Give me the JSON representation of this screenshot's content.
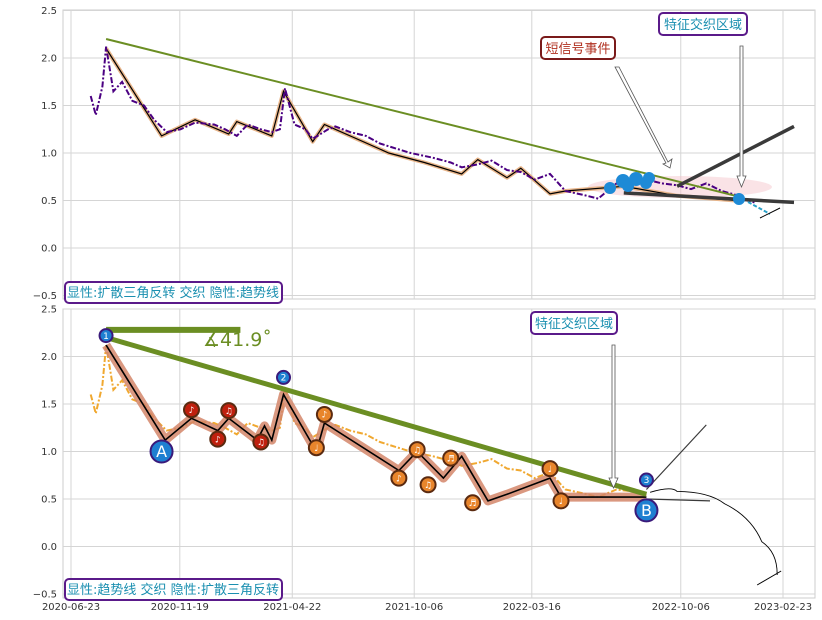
{
  "chart_data": [
    {
      "type": "line",
      "title": "",
      "xlabel": "",
      "ylabel": "",
      "ylim": [
        -0.5,
        2.5
      ],
      "yticks": [
        "−0.5",
        "0.0",
        "0.5",
        "1.0",
        "1.5",
        "2.0",
        "2.5"
      ],
      "grid": true,
      "series": [
        {
          "role": "price",
          "color": "#4b0082",
          "style": "dash-dot",
          "x": [
            "2020-07-20",
            "2020-07-27",
            "2020-08-05",
            "2020-08-10",
            "2020-08-20",
            "2020-09-01",
            "2020-09-15",
            "2020-10-01",
            "2020-10-15",
            "2020-11-01",
            "2020-11-20",
            "2020-12-10",
            "2021-01-05",
            "2021-01-20",
            "2021-02-05",
            "2021-02-20",
            "2021-03-10",
            "2021-03-25",
            "2021-04-05",
            "2021-04-12",
            "2021-04-25",
            "2021-05-10",
            "2021-05-20",
            "2021-06-10",
            "2021-06-20",
            "2021-07-10",
            "2021-08-01",
            "2021-08-20",
            "2021-09-10",
            "2021-10-01",
            "2021-11-01",
            "2021-11-25",
            "2021-12-10",
            "2022-01-01",
            "2022-01-20",
            "2022-02-10",
            "2022-03-01",
            "2022-03-20",
            "2022-04-10",
            "2022-05-01",
            "2022-05-25",
            "2022-06-15",
            "2022-07-10",
            "2022-08-01",
            "2022-08-20",
            "2022-09-10",
            "2022-10-01",
            "2022-10-20",
            "2022-11-10",
            "2022-12-01",
            "2022-12-20",
            "2023-01-05",
            "2023-01-15"
          ],
          "values": [
            1.6,
            1.4,
            1.7,
            2.12,
            1.65,
            1.75,
            1.55,
            1.5,
            1.35,
            1.22,
            1.25,
            1.32,
            1.3,
            1.25,
            1.18,
            1.3,
            1.25,
            1.22,
            1.25,
            1.68,
            1.3,
            1.25,
            1.15,
            1.25,
            1.28,
            1.22,
            1.18,
            1.1,
            1.05,
            1.0,
            0.95,
            0.9,
            0.85,
            0.88,
            0.92,
            0.82,
            0.8,
            0.72,
            0.78,
            0.6,
            0.56,
            0.52,
            0.68,
            0.7,
            0.72,
            0.68,
            0.66,
            0.62,
            0.68,
            0.6,
            0.56,
            0.5,
            0.48
          ]
        },
        {
          "role": "pattern-zigzag",
          "color": "#000000",
          "x": [
            "2020-08-10",
            "2020-10-25",
            "2020-12-10",
            "2021-01-25",
            "2021-02-05",
            "2021-03-25",
            "2021-04-10",
            "2021-05-20",
            "2021-06-05",
            "2021-09-01",
            "2021-10-20",
            "2021-12-10",
            "2022-01-01",
            "2022-02-10",
            "2022-03-01",
            "2022-04-10",
            "2022-05-01",
            "2022-07-20",
            "2022-10-01",
            "2022-12-20"
          ],
          "values": [
            2.1,
            1.18,
            1.35,
            1.2,
            1.33,
            1.18,
            1.65,
            1.12,
            1.3,
            1.0,
            0.9,
            0.78,
            0.93,
            0.74,
            0.84,
            0.57,
            0.6,
            0.65,
            0.55,
            0.5
          ]
        },
        {
          "role": "trendline",
          "color": "#6b8e23",
          "x": [
            "2020-08-10",
            "2022-12-20"
          ],
          "values": [
            2.2,
            0.55
          ]
        },
        {
          "role": "triangle-upper",
          "color": "#3a3a3a",
          "x": [
            "2022-10-01",
            "2023-03-10"
          ],
          "values": [
            0.65,
            1.28
          ]
        },
        {
          "role": "triangle-lower",
          "color": "#3a3a3a",
          "x": [
            "2022-07-20",
            "2023-03-10"
          ],
          "values": [
            0.58,
            0.48
          ]
        }
      ],
      "annotations": [
        {
          "text": "特征交织区域",
          "x": "2022-12-20",
          "y": 0.5
        },
        {
          "text": "短信号事件",
          "x": "2022-10-05",
          "y": 0.85
        },
        {
          "text": "显性:扩散三角反转 交织 隐性:趋势线"
        }
      ]
    },
    {
      "type": "line",
      "title": "",
      "xlabel": "",
      "ylabel": "",
      "ylim": [
        -0.5,
        2.5
      ],
      "yticks": [
        "−0.5",
        "0.0",
        "0.5",
        "1.0",
        "1.5",
        "2.0",
        "2.5"
      ],
      "xticks": [
        "2020-06-23",
        "2020-11-19",
        "2021-04-22",
        "2021-10-06",
        "2022-03-16",
        "2022-10-06",
        "2023-02-23"
      ],
      "grid": true,
      "series": [
        {
          "role": "price",
          "color": "#f0a830",
          "style": "dash-dot",
          "x": [
            "2020-07-20",
            "2020-07-27",
            "2020-08-05",
            "2020-08-10",
            "2020-08-20",
            "2020-09-01",
            "2020-09-15",
            "2020-10-01",
            "2020-10-15",
            "2020-11-01",
            "2020-11-20",
            "2020-12-10",
            "2021-01-05",
            "2021-01-20",
            "2021-02-05",
            "2021-02-20",
            "2021-03-10",
            "2021-03-25",
            "2021-04-05",
            "2021-04-12",
            "2021-04-25",
            "2021-05-10",
            "2021-05-20",
            "2021-06-10",
            "2021-06-20",
            "2021-07-10",
            "2021-08-01",
            "2021-08-20",
            "2021-09-10",
            "2021-10-01",
            "2021-11-01",
            "2021-11-25",
            "2021-12-10",
            "2022-01-01",
            "2022-01-20",
            "2022-02-10",
            "2022-03-01",
            "2022-03-20",
            "2022-04-10",
            "2022-05-01",
            "2022-05-25",
            "2022-06-15",
            "2022-07-10",
            "2022-08-01",
            "2022-08-20"
          ],
          "values": [
            1.6,
            1.4,
            1.7,
            2.12,
            1.65,
            1.75,
            1.55,
            1.5,
            1.35,
            1.22,
            1.25,
            1.32,
            1.3,
            1.25,
            1.18,
            1.3,
            1.25,
            1.22,
            1.25,
            1.68,
            1.3,
            1.25,
            1.15,
            1.25,
            1.28,
            1.22,
            1.18,
            1.1,
            1.05,
            1.0,
            0.95,
            0.9,
            0.85,
            0.88,
            0.92,
            0.82,
            0.8,
            0.72,
            0.78,
            0.6,
            0.56,
            0.52,
            0.6,
            0.58,
            0.54
          ]
        },
        {
          "role": "pattern-zigzag",
          "color": "#000000",
          "x": [
            "2020-08-10",
            "2020-10-30",
            "2020-12-05",
            "2021-01-10",
            "2021-01-25",
            "2021-03-05",
            "2021-03-15",
            "2021-03-25",
            "2021-04-10",
            "2021-05-25",
            "2021-06-05",
            "2021-09-15",
            "2021-10-10",
            "2021-11-15",
            "2021-12-10",
            "2022-01-15",
            "2022-02-10",
            "2022-04-10",
            "2022-04-25",
            "2022-08-20"
          ],
          "values": [
            2.12,
            1.12,
            1.35,
            1.22,
            1.35,
            1.12,
            1.27,
            1.12,
            1.6,
            1.0,
            1.3,
            0.8,
            1.0,
            0.72,
            0.95,
            0.48,
            0.55,
            0.72,
            0.52,
            0.52
          ]
        },
        {
          "role": "trendline",
          "color": "#6b8e23",
          "x": [
            "2020-08-10",
            "2022-08-20"
          ],
          "values": [
            2.2,
            0.55
          ]
        },
        {
          "role": "reference-flat",
          "color": "#6b8e23",
          "x": [
            "2020-08-10",
            "2021-02-10"
          ],
          "values": [
            2.28,
            2.28
          ]
        },
        {
          "role": "triangle-upper",
          "color": "#3a3a3a",
          "x": [
            "2022-08-20",
            "2022-11-10"
          ],
          "values": [
            0.6,
            1.28
          ]
        },
        {
          "role": "triangle-lower",
          "color": "#3a3a3a",
          "x": [
            "2022-08-20",
            "2022-11-15"
          ],
          "values": [
            0.5,
            0.48
          ]
        },
        {
          "role": "projection-arc",
          "color": "#000000",
          "x": [
            "2022-08-25",
            "2022-10-01",
            "2022-12-05",
            "2023-01-25",
            "2023-02-15"
          ],
          "values": [
            0.57,
            0.58,
            0.45,
            0.05,
            -0.3
          ]
        }
      ],
      "markers": [
        {
          "label": "1",
          "x": "2020-08-10",
          "y": 2.22,
          "color": "#1e7fd1"
        },
        {
          "label": "2",
          "x": "2021-04-10",
          "y": 1.78,
          "color": "#1e7fd1"
        },
        {
          "label": "3",
          "x": "2022-08-20",
          "y": 0.7,
          "color": "#1e7fd1"
        },
        {
          "label": "A",
          "x": "2020-10-25",
          "y": 1.0,
          "color": "#1e7fd1"
        },
        {
          "label": "B",
          "x": "2022-08-20",
          "y": 0.38,
          "color": "#1e7fd1"
        },
        {
          "label": "♪",
          "x": "2020-12-05",
          "y": 1.44,
          "color": "#c0200e"
        },
        {
          "label": "♪",
          "x": "2021-01-10",
          "y": 1.13,
          "color": "#c0200e"
        },
        {
          "label": "♫",
          "x": "2021-01-25",
          "y": 1.43,
          "color": "#c0200e"
        },
        {
          "label": "♫",
          "x": "2021-03-10",
          "y": 1.1,
          "color": "#c0200e"
        },
        {
          "label": "♩",
          "x": "2021-05-25",
          "y": 1.04,
          "color": "#e8852c"
        },
        {
          "label": "♪",
          "x": "2021-06-05",
          "y": 1.39,
          "color": "#e8852c"
        },
        {
          "label": "♪",
          "x": "2021-09-15",
          "y": 0.72,
          "color": "#e8852c"
        },
        {
          "label": "♫",
          "x": "2021-10-10",
          "y": 1.02,
          "color": "#e8852c"
        },
        {
          "label": "♫",
          "x": "2021-10-25",
          "y": 0.65,
          "color": "#e8852c"
        },
        {
          "label": "♬",
          "x": "2021-11-25",
          "y": 0.93,
          "color": "#e8852c"
        },
        {
          "label": "♬",
          "x": "2021-12-25",
          "y": 0.46,
          "color": "#e8852c"
        },
        {
          "label": "♩",
          "x": "2022-04-10",
          "y": 0.82,
          "color": "#e8852c"
        },
        {
          "label": "♩",
          "x": "2022-04-25",
          "y": 0.48,
          "color": "#e8852c"
        }
      ],
      "annotations": [
        {
          "text": "∡41.9˚"
        },
        {
          "text": "特征交织区域",
          "x": "2022-08-25",
          "y": 0.55
        },
        {
          "text": "显性:趋势线 交织 隐性:扩散三角反转"
        }
      ]
    }
  ]
}
